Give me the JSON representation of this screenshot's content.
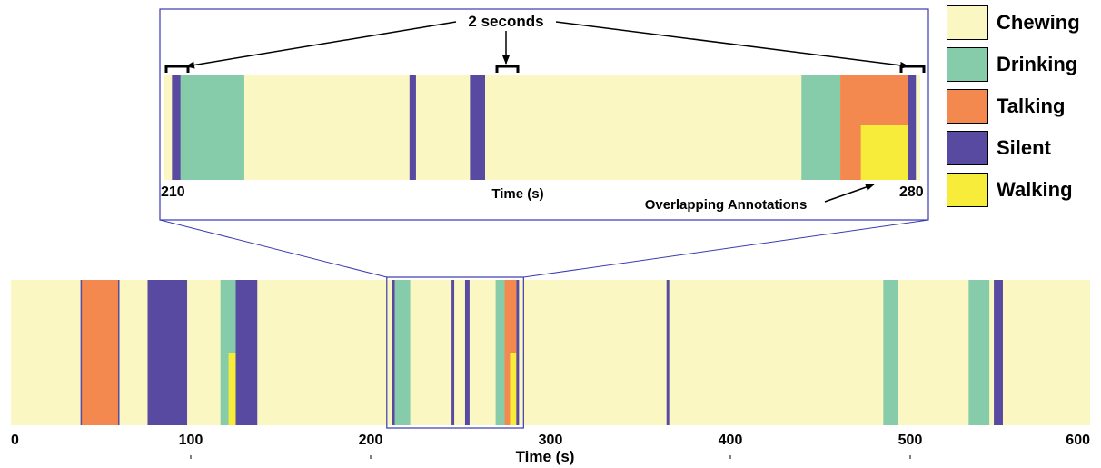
{
  "chart_data": {
    "type": "timeline",
    "colors": {
      "Chewing": "#fbf7c3",
      "Drinking": "#86ccaa",
      "Talking": "#f4894f",
      "Silent": "#574aa0",
      "Walking": "#f7ec3a"
    },
    "legend": [
      "Chewing",
      "Drinking",
      "Talking",
      "Silent",
      "Walking"
    ],
    "main": {
      "xlim": [
        0,
        600
      ],
      "xlabel": "Time (s)",
      "ticks": [
        0,
        100,
        200,
        300,
        400,
        500,
        600
      ],
      "segments": [
        {
          "label": "Talking",
          "start": 39,
          "end": 60
        },
        {
          "label": "Silent",
          "start": 38.7,
          "end": 39.4
        },
        {
          "label": "Silent",
          "start": 59.6,
          "end": 60.3
        },
        {
          "label": "Silent",
          "start": 76,
          "end": 98
        },
        {
          "label": "Drinking",
          "start": 116.5,
          "end": 125
        },
        {
          "label": "Silent",
          "start": 125,
          "end": 137
        },
        {
          "label": "Walking",
          "start": 121,
          "end": 125,
          "row": "lower"
        },
        {
          "label": "Silent",
          "start": 212,
          "end": 213.5
        },
        {
          "label": "Drinking",
          "start": 213.5,
          "end": 222
        },
        {
          "label": "Silent",
          "start": 245,
          "end": 246.5
        },
        {
          "label": "Silent",
          "start": 252.5,
          "end": 255
        },
        {
          "label": "Drinking",
          "start": 269.5,
          "end": 274.5
        },
        {
          "label": "Talking",
          "start": 274.5,
          "end": 281
        },
        {
          "label": "Walking",
          "start": 277.5,
          "end": 281,
          "row": "lower"
        },
        {
          "label": "Silent",
          "start": 281,
          "end": 282.5
        },
        {
          "label": "Silent",
          "start": 364.5,
          "end": 366
        },
        {
          "label": "Drinking",
          "start": 485,
          "end": 493
        },
        {
          "label": "Drinking",
          "start": 532.5,
          "end": 544
        },
        {
          "label": "Silent",
          "start": 546.5,
          "end": 551.5
        }
      ],
      "zoom_window": [
        210,
        284
      ]
    },
    "inset": {
      "xlim": [
        210,
        280
      ],
      "xlabel": "Time (s)",
      "tick_labels": [
        "210",
        "280"
      ],
      "segments": [
        {
          "label": "Silent",
          "start": 210.7,
          "end": 211.5
        },
        {
          "label": "Drinking",
          "start": 211.5,
          "end": 217.4
        },
        {
          "label": "Silent",
          "start": 232.7,
          "end": 233.3
        },
        {
          "label": "Silent",
          "start": 238.3,
          "end": 239.7
        },
        {
          "label": "Drinking",
          "start": 269,
          "end": 272.6
        },
        {
          "label": "Talking",
          "start": 272.6,
          "end": 278.9
        },
        {
          "label": "Walking",
          "start": 274.5,
          "end": 278.9,
          "row": "lower"
        },
        {
          "label": "Silent",
          "start": 278.9,
          "end": 279.6
        }
      ],
      "annotations": {
        "two_seconds": "2 seconds",
        "overlapping": "Overlapping Annotations"
      }
    }
  }
}
